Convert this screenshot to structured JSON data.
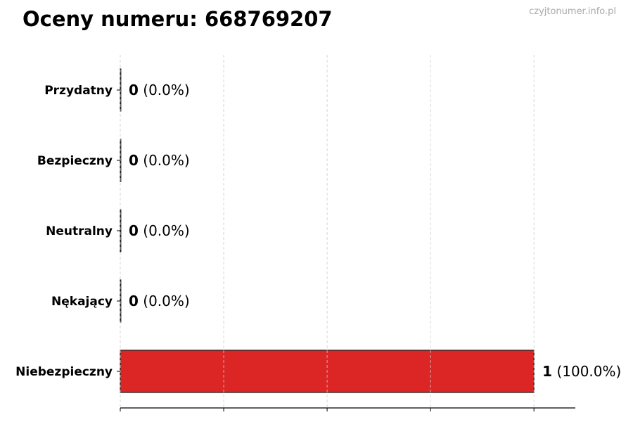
{
  "title": "Oceny numeru: 668769207",
  "watermark": "czyjtonumer.info.pl",
  "chart_data": {
    "type": "bar",
    "orientation": "horizontal",
    "categories": [
      "Przydatny",
      "Bezpieczny",
      "Neutralny",
      "Nękający",
      "Niebezpieczny"
    ],
    "values": [
      0,
      0,
      0,
      0,
      1
    ],
    "percent_labels": [
      "(0.0%)",
      "(0.0%)",
      "(0.0%)",
      "(0.0%)",
      "(100.0%)"
    ],
    "xlim": [
      0,
      1.1
    ],
    "xticks": [
      0,
      0.25,
      0.5,
      0.75,
      1.0
    ],
    "grid": "x-dashed",
    "colors": [
      "#dc2626",
      "#dc2626",
      "#dc2626",
      "#dc2626",
      "#dc2626"
    ],
    "edge_color": "#1a1a1a"
  }
}
